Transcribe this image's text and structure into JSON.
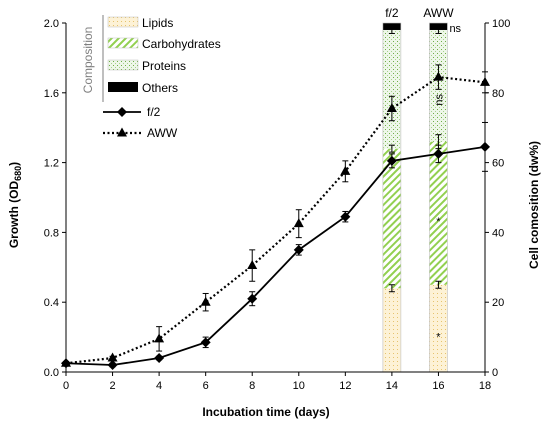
{
  "chart_data": {
    "type": "line",
    "xlabel": "Incubation time (days)",
    "ylabel": "Growth (OD",
    "ylabel_sub": "680",
    "ylabel_end": ")",
    "y2label": "Cell comosition (dw%)",
    "xlim": [
      0,
      18
    ],
    "ylim": [
      0,
      2.0
    ],
    "y2lim": [
      0,
      100
    ],
    "x_ticks": [
      0,
      2,
      4,
      6,
      8,
      10,
      12,
      14,
      16,
      18
    ],
    "y_ticks": [
      "0.0",
      "0.4",
      "0.8",
      "1.2",
      "1.6",
      "2.0"
    ],
    "y2_ticks": [
      "0",
      "20",
      "40",
      "60",
      "80",
      "100"
    ],
    "series": [
      {
        "name": "f/2",
        "marker": "diamond",
        "line": "solid",
        "x": [
          0,
          2,
          4,
          6,
          8,
          10,
          12,
          14,
          16,
          18
        ],
        "y": [
          0.05,
          0.04,
          0.08,
          0.17,
          0.42,
          0.7,
          0.89,
          1.21,
          1.25,
          1.29
        ],
        "err": [
          0.01,
          0.01,
          0.01,
          0.03,
          0.04,
          0.03,
          0.03,
          0.04,
          0.05,
          0.14
        ]
      },
      {
        "name": "AWW",
        "marker": "triangle",
        "line": "dotted",
        "x": [
          0,
          2,
          4,
          6,
          8,
          10,
          12,
          14,
          16,
          18
        ],
        "y": [
          0.05,
          0.08,
          0.19,
          0.4,
          0.61,
          0.85,
          1.15,
          1.51,
          1.69,
          1.66
        ],
        "err": [
          0.01,
          0.01,
          0.07,
          0.05,
          0.09,
          0.08,
          0.06,
          0.07,
          0.07,
          0.06
        ]
      }
    ],
    "composition": {
      "title": "Composition",
      "group_labels": [
        "f/2",
        "AWW"
      ],
      "x": [
        14,
        16
      ],
      "components": [
        {
          "name": "Lipids",
          "values": [
            24,
            25
          ],
          "err": [
            1,
            1
          ]
        },
        {
          "name": "Carbohydrates",
          "values": [
            40,
            41
          ],
          "err": [
            1,
            2
          ]
        },
        {
          "name": "Proteins",
          "values": [
            34,
            32
          ],
          "err": [
            1,
            1
          ]
        },
        {
          "name": "Others",
          "values": [
            2,
            2
          ],
          "err": [
            0,
            0
          ]
        }
      ],
      "annotations": [
        {
          "text": "*",
          "bar": 1,
          "component": "Lipids"
        },
        {
          "text": "*",
          "bar": 1,
          "component": "Carbohydrates"
        },
        {
          "text": "ns",
          "bar": 1,
          "component": "Proteins"
        },
        {
          "text": "ns",
          "bar": 1,
          "component": "Others"
        }
      ]
    }
  }
}
